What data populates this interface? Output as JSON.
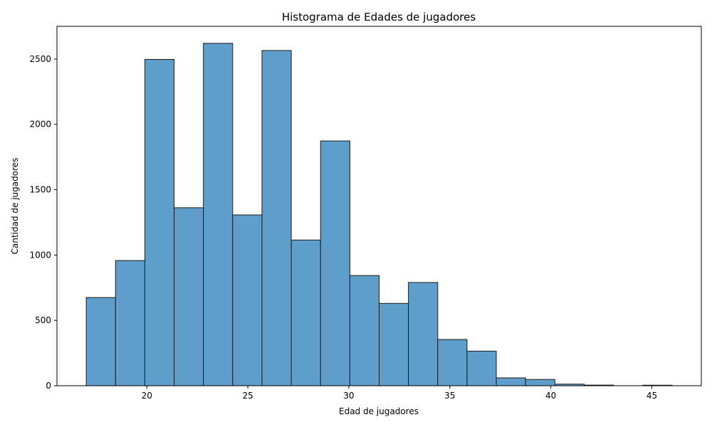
{
  "chart_data": {
    "type": "bar",
    "title": "Histograma de Edades de jugadores",
    "xlabel": "Edad de jugadores",
    "ylabel": "Cantidad de jugadores",
    "xlim": [
      15.55,
      47.45
    ],
    "ylim": [
      0,
      2750
    ],
    "xticks": [
      20,
      25,
      30,
      35,
      40,
      45
    ],
    "yticks": [
      0,
      500,
      1000,
      1500,
      2000,
      2500
    ],
    "bin_edges": [
      17.0,
      18.45,
      19.9,
      21.35,
      22.8,
      24.25,
      25.7,
      27.15,
      28.6,
      30.05,
      31.5,
      32.95,
      34.4,
      35.85,
      37.3,
      38.75,
      40.2,
      41.65,
      43.1,
      44.55,
      46.0
    ],
    "values": [
      675,
      958,
      2497,
      1362,
      2620,
      1307,
      2565,
      1115,
      1873,
      843,
      630,
      790,
      354,
      265,
      60,
      48,
      12,
      5,
      0,
      4
    ],
    "bar_color": "#5f9ecb",
    "edge_color": "#1a1a1a",
    "grid": false,
    "legend": "none"
  }
}
